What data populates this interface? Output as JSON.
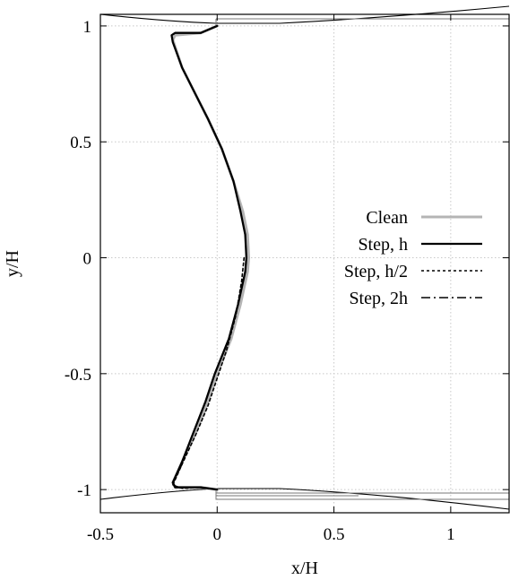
{
  "chart_data": {
    "type": "line",
    "title": "",
    "xlabel": "x/H",
    "ylabel": "y/H",
    "xlim": [
      -0.5,
      1.25
    ],
    "ylim": [
      -1.1,
      1.05
    ],
    "xticks": [
      -0.5,
      0,
      0.5,
      1
    ],
    "xtick_labels": [
      "-0.5",
      "0",
      "0.5",
      "1"
    ],
    "yticks": [
      -1,
      -0.5,
      0,
      0.5,
      1
    ],
    "ytick_labels": [
      "-1",
      "-0.5",
      "0",
      "0.5",
      "1"
    ],
    "grid": true,
    "legend_position": "right",
    "series": [
      {
        "name": "Clean",
        "color": "#b4b4b4",
        "dash": "solid",
        "points": [
          [
            0.0,
            1.0
          ],
          [
            -0.07,
            0.97
          ],
          [
            -0.18,
            0.96
          ],
          [
            -0.19,
            0.94
          ],
          [
            -0.15,
            0.82
          ],
          [
            -0.09,
            0.7
          ],
          [
            -0.04,
            0.6
          ],
          [
            0.02,
            0.47
          ],
          [
            0.07,
            0.33
          ],
          [
            0.11,
            0.2
          ],
          [
            0.13,
            0.1
          ],
          [
            0.135,
            0.0
          ],
          [
            0.13,
            -0.06
          ],
          [
            0.1,
            -0.2
          ],
          [
            0.06,
            -0.35
          ],
          [
            0.0,
            -0.5
          ],
          [
            -0.04,
            -0.62
          ],
          [
            -0.09,
            -0.75
          ],
          [
            -0.15,
            -0.88
          ],
          [
            -0.19,
            -0.97
          ],
          [
            -0.18,
            -0.99
          ],
          [
            -0.07,
            -0.99
          ],
          [
            0.0,
            -1.0
          ]
        ]
      },
      {
        "name": "Step, h",
        "color": "#000000",
        "dash": "solid",
        "points": [
          [
            0.0,
            1.0
          ],
          [
            -0.07,
            0.97
          ],
          [
            -0.18,
            0.97
          ],
          [
            -0.195,
            0.96
          ],
          [
            -0.19,
            0.93
          ],
          [
            -0.15,
            0.82
          ],
          [
            -0.09,
            0.7
          ],
          [
            -0.04,
            0.6
          ],
          [
            0.02,
            0.47
          ],
          [
            0.07,
            0.33
          ],
          [
            0.1,
            0.2
          ],
          [
            0.12,
            0.1
          ],
          [
            0.125,
            0.0
          ],
          [
            0.12,
            -0.06
          ],
          [
            0.09,
            -0.2
          ],
          [
            0.05,
            -0.35
          ],
          [
            -0.01,
            -0.5
          ],
          [
            -0.05,
            -0.62
          ],
          [
            -0.1,
            -0.75
          ],
          [
            -0.15,
            -0.88
          ],
          [
            -0.19,
            -0.97
          ],
          [
            -0.18,
            -0.99
          ],
          [
            -0.07,
            -0.99
          ],
          [
            0.0,
            -1.0
          ]
        ]
      },
      {
        "name": "Step, h/2",
        "color": "#000000",
        "dash": "dotted",
        "points": [
          [
            0.115,
            0.0
          ],
          [
            0.105,
            -0.1
          ],
          [
            0.08,
            -0.25
          ],
          [
            0.04,
            -0.4
          ],
          [
            0.0,
            -0.52
          ],
          [
            -0.04,
            -0.64
          ],
          [
            -0.09,
            -0.76
          ],
          [
            -0.15,
            -0.89
          ],
          [
            -0.19,
            -0.98
          ],
          [
            -0.15,
            -0.995
          ],
          [
            -0.07,
            -0.99
          ],
          [
            0.0,
            -1.0
          ]
        ]
      },
      {
        "name": "Step, 2h",
        "color": "#000000",
        "dash": "dashdot",
        "points": [
          [
            -0.15,
            -0.89
          ],
          [
            -0.19,
            -0.97
          ],
          [
            -0.18,
            -0.99
          ],
          [
            -0.07,
            -0.99
          ],
          [
            0.0,
            -1.0
          ]
        ]
      }
    ]
  }
}
